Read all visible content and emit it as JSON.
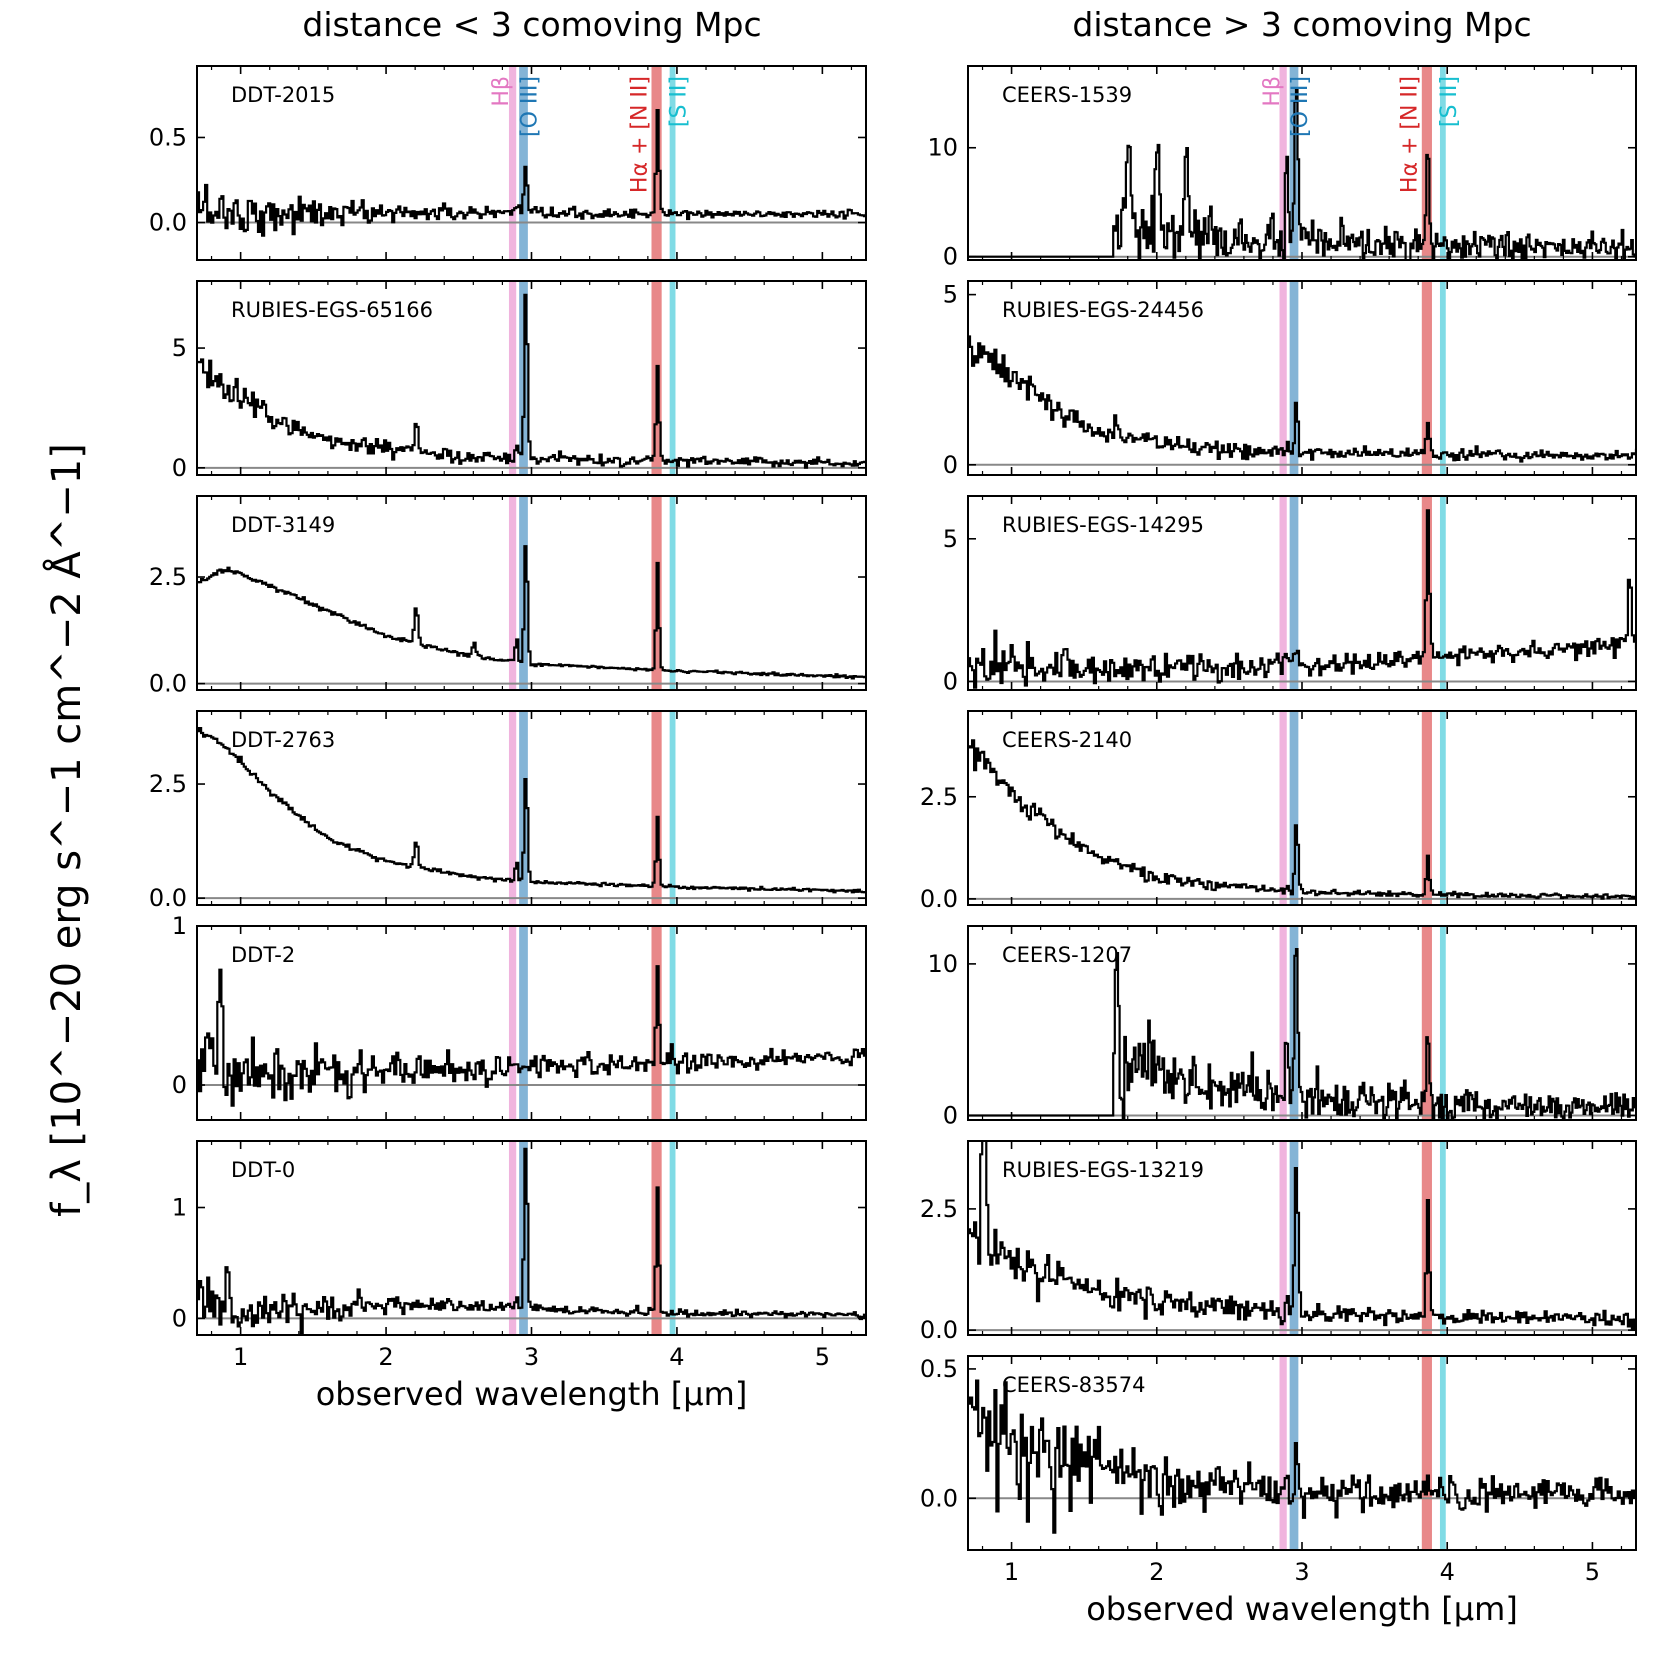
{
  "chart_data": {
    "type": "line",
    "ylabel": "f_λ [10^−20 erg s^−1 cm^−2 Å^−1]",
    "xlim": [
      0.7,
      5.3
    ],
    "xticks": [
      1,
      2,
      3,
      4,
      5
    ],
    "line_bands": [
      {
        "label": "Hβ",
        "center": 2.87,
        "width": 0.05,
        "color": "#e377c2"
      },
      {
        "label": "[O III]",
        "center": 2.945,
        "width": 0.06,
        "color": "#1f77b4"
      },
      {
        "label": "Hα + [N II]",
        "center": 3.86,
        "width": 0.07,
        "color": "#d62728"
      },
      {
        "label": "[S II]",
        "center": 3.97,
        "width": 0.04,
        "color": "#17becf"
      }
    ],
    "columns": [
      {
        "title": "distance < 3 comoving Mpc",
        "xlabel": "observed wavelength [μm]",
        "panels": [
          {
            "name": "DDT-2015",
            "ylim": [
              -0.22,
              0.92
            ],
            "yticks": [
              0.0,
              0.5
            ],
            "yticklabels": [
              "0.0",
              "0.5"
            ],
            "spectrum": {
              "start": 0.7,
              "cont": [
                [
                  0.7,
                  0.1
                ],
                [
                  1.0,
                  0.05
                ],
                [
                  2.0,
                  0.06
                ],
                [
                  3.0,
                  0.05
                ],
                [
                  5.3,
                  0.05
                ]
              ],
              "noise_lo": 0.18,
              "noise_hi": 0.02,
              "noise_scale": 0.4,
              "lines": {
                "hb": 0.03,
                "oiii": 0.27,
                "ha": 0.62,
                "extra": []
              }
            }
          },
          {
            "name": "RUBIES-EGS-65166",
            "ylim": [
              -0.3,
              7.8
            ],
            "yticks": [
              0,
              5
            ],
            "yticklabels": [
              "0",
              "5"
            ],
            "spectrum": {
              "start": 0.7,
              "cont": [
                [
                  0.7,
                  4.2
                ],
                [
                  1.0,
                  2.8
                ],
                [
                  1.5,
                  1.3
                ],
                [
                  2.0,
                  0.7
                ],
                [
                  3.0,
                  0.35
                ],
                [
                  5.3,
                  0.2
                ]
              ],
              "noise_lo": 0.7,
              "noise_hi": 0.15,
              "noise_scale": 0.5,
              "lines": {
                "hb": 0.8,
                "oiii": 7.4,
                "ha": 4.0,
                "extra": [
                  [
                    2.2,
                    1.5
                  ]
                ]
              }
            }
          },
          {
            "name": "DDT-3149",
            "ylim": [
              -0.15,
              4.4
            ],
            "yticks": [
              0.0,
              2.5
            ],
            "yticklabels": [
              "0.0",
              "2.5"
            ],
            "spectrum": {
              "start": 0.7,
              "cont": [
                [
                  0.7,
                  2.4
                ],
                [
                  0.9,
                  2.7
                ],
                [
                  1.2,
                  2.3
                ],
                [
                  1.6,
                  1.7
                ],
                [
                  2.0,
                  1.1
                ],
                [
                  2.5,
                  0.7
                ],
                [
                  3.0,
                  0.45
                ],
                [
                  4.0,
                  0.3
                ],
                [
                  5.3,
                  0.15
                ]
              ],
              "noise_lo": 0.06,
              "noise_hi": 0.03,
              "noise_scale": 0.5,
              "lines": {
                "hb": 0.6,
                "oiii": 2.9,
                "ha": 2.5,
                "extra": [
                  [
                    2.2,
                    0.9
                  ],
                  [
                    2.6,
                    0.3
                  ]
                ]
              }
            }
          },
          {
            "name": "DDT-2763",
            "ylim": [
              -0.15,
              4.1
            ],
            "yticks": [
              0.0,
              2.5
            ],
            "yticklabels": [
              "0.0",
              "2.5"
            ],
            "spectrum": {
              "start": 0.7,
              "cont": [
                [
                  0.7,
                  3.7
                ],
                [
                  0.9,
                  3.3
                ],
                [
                  1.2,
                  2.3
                ],
                [
                  1.6,
                  1.3
                ],
                [
                  2.0,
                  0.8
                ],
                [
                  2.5,
                  0.5
                ],
                [
                  3.0,
                  0.35
                ],
                [
                  4.0,
                  0.25
                ],
                [
                  5.3,
                  0.15
                ]
              ],
              "noise_lo": 0.06,
              "noise_hi": 0.03,
              "noise_scale": 0.5,
              "lines": {
                "hb": 0.5,
                "oiii": 2.4,
                "ha": 1.5,
                "extra": [
                  [
                    2.2,
                    0.6
                  ]
                ]
              }
            }
          },
          {
            "name": "DDT-2",
            "ylim": [
              -0.22,
              1.0
            ],
            "yticks": [
              0,
              1
            ],
            "yticklabels": [
              "0",
              "1"
            ],
            "spectrum": {
              "start": 0.7,
              "cont": [
                [
                  0.7,
                  0.2
                ],
                [
                  1.0,
                  0.05
                ],
                [
                  2.0,
                  0.08
                ],
                [
                  3.0,
                  0.12
                ],
                [
                  4.0,
                  0.15
                ],
                [
                  5.3,
                  0.18
                ]
              ],
              "noise_lo": 0.25,
              "noise_hi": 0.05,
              "noise_scale": 0.5,
              "lines": {
                "hb": 0.0,
                "oiii": 0.0,
                "ha": 0.6,
                "extra": [
                  [
                    0.85,
                    0.7
                  ]
                ]
              }
            }
          },
          {
            "name": "DDT-0",
            "ylim": [
              -0.15,
              1.6
            ],
            "yticks": [
              0,
              1
            ],
            "yticklabels": [
              "0",
              "1"
            ],
            "spectrum": {
              "start": 0.7,
              "cont": [
                [
                  0.7,
                  0.1
                ],
                [
                  1.0,
                  0.05
                ],
                [
                  2.0,
                  0.12
                ],
                [
                  2.8,
                  0.1
                ],
                [
                  4.0,
                  0.05
                ],
                [
                  5.3,
                  0.03
                ]
              ],
              "noise_lo": 0.2,
              "noise_hi": 0.02,
              "noise_scale": 0.5,
              "lines": {
                "hb": 0.1,
                "oiii": 1.5,
                "ha": 1.15,
                "extra": [
                  [
                    0.9,
                    0.45
                  ]
                ]
              }
            }
          }
        ]
      },
      {
        "title": "distance > 3 comoving Mpc",
        "xlabel": "observed wavelength [μm]",
        "panels": [
          {
            "name": "CEERS-1539",
            "ylim": [
              -0.3,
              17.5
            ],
            "yticks": [
              0,
              10
            ],
            "yticklabels": [
              "0",
              "10"
            ],
            "spectrum": {
              "start": 1.7,
              "cont": [
                [
                  1.7,
                  2.5
                ],
                [
                  2.0,
                  2.0
                ],
                [
                  3.0,
                  1.2
                ],
                [
                  4.0,
                  0.9
                ],
                [
                  5.3,
                  0.8
                ]
              ],
              "noise_lo": 3.0,
              "noise_hi": 0.5,
              "noise_scale": 1.0,
              "lines": {
                "hb": 8.0,
                "oiii": 16.5,
                "ha": 9.0,
                "extra": [
                  [
                    1.8,
                    8.5
                  ],
                  [
                    2.0,
                    9.0
                  ],
                  [
                    2.2,
                    8.5
                  ]
                ]
              }
            }
          },
          {
            "name": "RUBIES-EGS-24456",
            "ylim": [
              -0.3,
              5.4
            ],
            "yticks": [
              0,
              5
            ],
            "yticklabels": [
              "0",
              "5"
            ],
            "spectrum": {
              "start": 0.7,
              "cont": [
                [
                  0.7,
                  3.5
                ],
                [
                  1.0,
                  2.6
                ],
                [
                  1.5,
                  1.1
                ],
                [
                  2.0,
                  0.6
                ],
                [
                  3.0,
                  0.35
                ],
                [
                  5.3,
                  0.25
                ]
              ],
              "noise_lo": 0.5,
              "noise_hi": 0.12,
              "noise_scale": 0.5,
              "lines": {
                "hb": 0.3,
                "oiii": 1.5,
                "ha": 1.0,
                "extra": []
              }
            }
          },
          {
            "name": "RUBIES-EGS-14295",
            "ylim": [
              -0.3,
              6.5
            ],
            "yticks": [
              0,
              5
            ],
            "yticklabels": [
              "0",
              "5"
            ],
            "spectrum": {
              "start": 0.7,
              "cont": [
                [
                  0.7,
                  0.5
                ],
                [
                  2.0,
                  0.5
                ],
                [
                  3.0,
                  0.6
                ],
                [
                  4.0,
                  0.9
                ],
                [
                  5.3,
                  1.3
                ]
              ],
              "noise_lo": 0.8,
              "noise_hi": 0.3,
              "noise_scale": 0.5,
              "lines": {
                "hb": 0.2,
                "oiii": 0.8,
                "ha": 5.2,
                "extra": [
                  [
                    5.25,
                    2.5
                  ]
                ]
              }
            }
          },
          {
            "name": "CEERS-2140",
            "ylim": [
              -0.15,
              4.6
            ],
            "yticks": [
              0.0,
              2.5
            ],
            "yticklabels": [
              "0.0",
              "2.5"
            ],
            "spectrum": {
              "start": 0.7,
              "cont": [
                [
                  0.7,
                  3.8
                ],
                [
                  1.0,
                  2.5
                ],
                [
                  1.5,
                  1.2
                ],
                [
                  2.0,
                  0.5
                ],
                [
                  3.0,
                  0.15
                ],
                [
                  5.3,
                  0.05
                ]
              ],
              "noise_lo": 0.3,
              "noise_hi": 0.05,
              "noise_scale": 0.5,
              "lines": {
                "hb": 0.2,
                "oiii": 1.7,
                "ha": 0.9,
                "extra": []
              }
            }
          },
          {
            "name": "CEERS-1207",
            "ylim": [
              -0.3,
              12.5
            ],
            "yticks": [
              0,
              10
            ],
            "yticklabels": [
              "0",
              "10"
            ],
            "spectrum": {
              "start": 1.7,
              "cont": [
                [
                  1.7,
                  3.5
                ],
                [
                  2.0,
                  2.8
                ],
                [
                  3.0,
                  1.0
                ],
                [
                  4.0,
                  0.6
                ],
                [
                  5.3,
                  0.5
                ]
              ],
              "noise_lo": 2.5,
              "noise_hi": 0.4,
              "noise_scale": 1.0,
              "lines": {
                "hb": 4.5,
                "oiii": 11.5,
                "ha": 4.0,
                "extra": [
                  [
                    1.72,
                    7.5
                  ]
                ]
              }
            }
          },
          {
            "name": "RUBIES-EGS-13219",
            "ylim": [
              -0.1,
              3.9
            ],
            "yticks": [
              0.0,
              2.5
            ],
            "yticklabels": [
              "0.0",
              "2.5"
            ],
            "spectrum": {
              "start": 0.7,
              "cont": [
                [
                  0.7,
                  2.2
                ],
                [
                  1.0,
                  1.4
                ],
                [
                  1.5,
                  0.8
                ],
                [
                  2.0,
                  0.55
                ],
                [
                  3.0,
                  0.35
                ],
                [
                  5.3,
                  0.2
                ]
              ],
              "noise_lo": 0.5,
              "noise_hi": 0.12,
              "noise_scale": 0.5,
              "lines": {
                "hb": 0.5,
                "oiii": 3.2,
                "ha": 2.4,
                "extra": [
                  [
                    0.8,
                    3.6
                  ]
                ]
              }
            }
          },
          {
            "name": "CEERS-83574",
            "ylim": [
              -0.2,
              0.55
            ],
            "yticks": [
              0.0,
              0.5
            ],
            "yticklabels": [
              "0.0",
              "0.5"
            ],
            "spectrum": {
              "start": 0.7,
              "cont": [
                [
                  0.7,
                  0.3
                ],
                [
                  1.0,
                  0.2
                ],
                [
                  1.5,
                  0.15
                ],
                [
                  2.0,
                  0.05
                ],
                [
                  3.0,
                  0.02
                ],
                [
                  5.3,
                  0.02
                ]
              ],
              "noise_lo": 0.2,
              "noise_hi": 0.05,
              "noise_scale": 0.5,
              "lines": {
                "hb": 0.05,
                "oiii": 0.18,
                "ha": 0.12,
                "extra": []
              }
            }
          }
        ]
      }
    ]
  }
}
